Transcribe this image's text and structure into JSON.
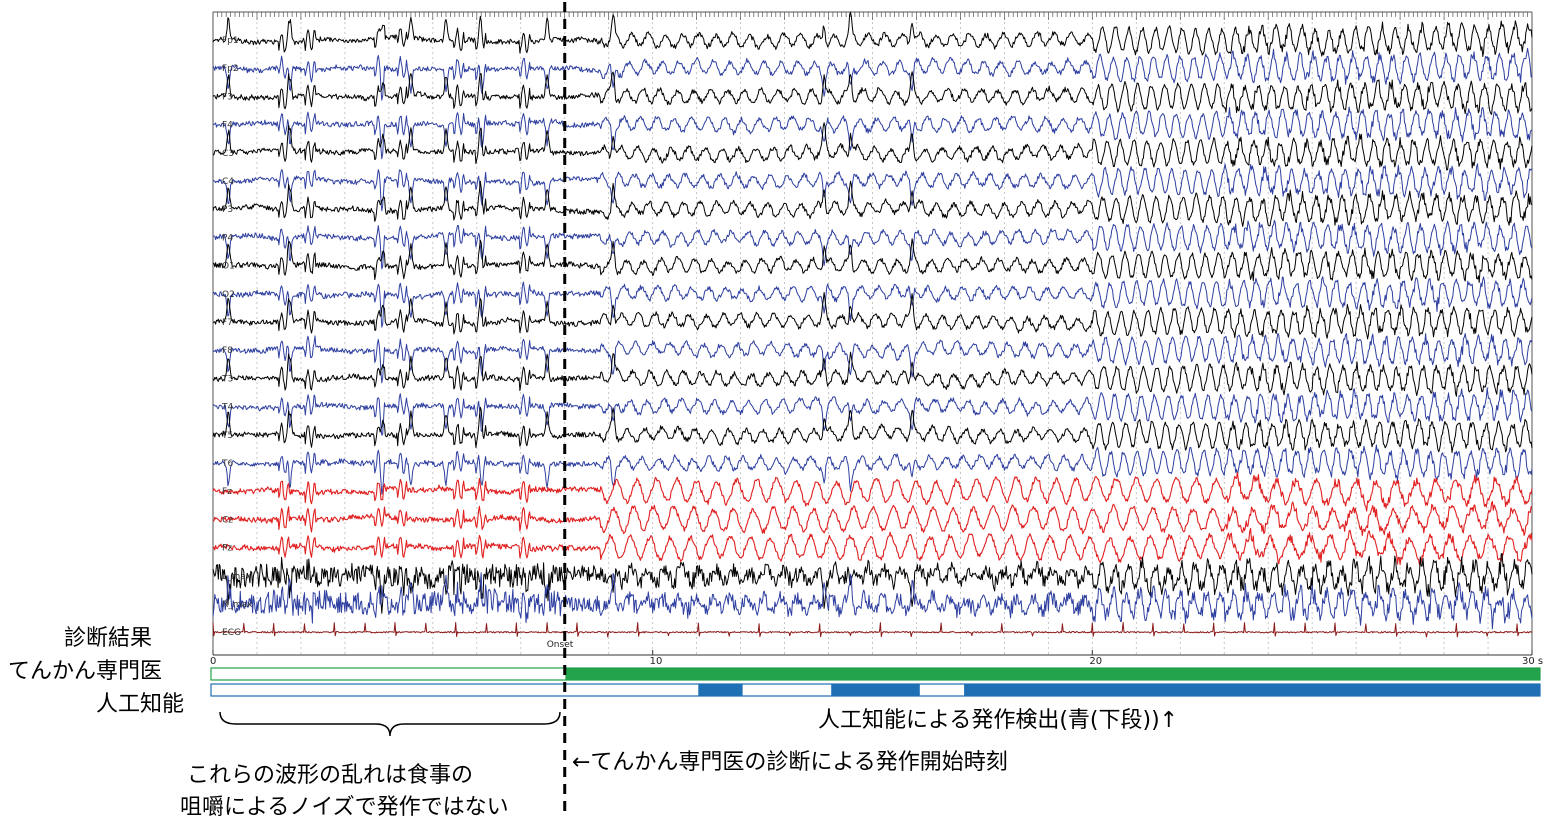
{
  "chart_data": {
    "type": "line",
    "xlabel": "",
    "ylabel": "",
    "xlim": [
      0,
      30
    ],
    "x_ticks": [
      "0",
      "10",
      "20",
      "30 s"
    ],
    "channels": [
      {
        "name": "Fp1",
        "color": "#000000"
      },
      {
        "name": "Fp2",
        "color": "#2e3fa0"
      },
      {
        "name": "F3",
        "color": "#000000"
      },
      {
        "name": "F4",
        "color": "#2e3fa0"
      },
      {
        "name": "C3",
        "color": "#000000"
      },
      {
        "name": "C4",
        "color": "#2e3fa0"
      },
      {
        "name": "P3",
        "color": "#000000"
      },
      {
        "name": "P4",
        "color": "#2e3fa0"
      },
      {
        "name": "O1",
        "color": "#000000"
      },
      {
        "name": "O2",
        "color": "#2e3fa0"
      },
      {
        "name": "F7",
        "color": "#000000"
      },
      {
        "name": "F8",
        "color": "#2e3fa0"
      },
      {
        "name": "T3",
        "color": "#000000"
      },
      {
        "name": "T4",
        "color": "#2e3fa0"
      },
      {
        "name": "T5",
        "color": "#000000"
      },
      {
        "name": "T6",
        "color": "#2e3fa0"
      },
      {
        "name": "Fz",
        "color": "#e02020"
      },
      {
        "name": "Cz",
        "color": "#e02020"
      },
      {
        "name": "Pz",
        "color": "#e02020"
      },
      {
        "name": "L_max",
        "color": "#000000"
      },
      {
        "name": "R_max",
        "color": "#2e3fa0"
      },
      {
        "name": "ECG",
        "color": "#8b1a1a"
      }
    ],
    "onset_label": "Onset",
    "onset_time": 8.0,
    "artifact_interval": [
      0,
      8.0
    ],
    "seizure_rhythmic_from": 8.8,
    "expert_annotation": {
      "color": "#22a24a",
      "seizure_intervals": [
        [
          8.0,
          30.0
        ]
      ]
    },
    "ai_detection": {
      "color": "#1f6fb5",
      "seizure_intervals": [
        [
          11.0,
          12.0
        ],
        [
          14.0,
          16.0
        ],
        [
          17.0,
          30.0
        ]
      ]
    }
  },
  "labels": {
    "result_heading": "診断結果",
    "expert_row": "てんかん専門医",
    "ai_row": "人工知能",
    "ai_detect_note": "人工知能による発作検出(青(下段))↑",
    "artifact_note_line1": "これらの波形の乱れは食事の",
    "artifact_note_line2": "咀嚼によるノイズで発作ではない",
    "onset_note": "←てんかん専門医の診断による発作開始時刻"
  }
}
